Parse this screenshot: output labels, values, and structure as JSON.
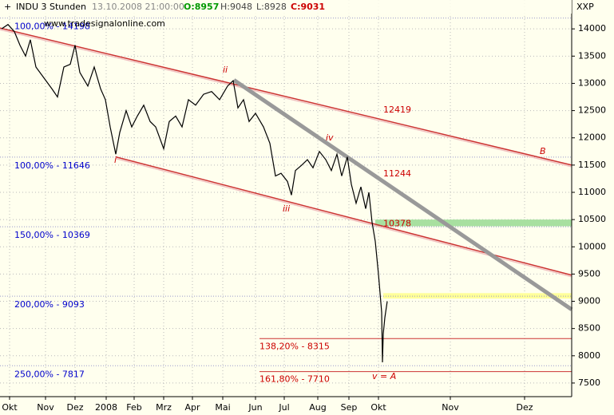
{
  "header": {
    "symbol": "INDU 3 Stunden",
    "datetime": "13.10.2008 21:00:00",
    "open": "O:8957",
    "high": "H:9048",
    "low": "L:8928",
    "close": "C:9031",
    "source": "www.tradesignalonline.com",
    "corner": "XXP"
  },
  "chart_data": {
    "type": "line",
    "color": "#000000",
    "grid": true,
    "xlim": [
      0,
      716
    ],
    "ylim": [
      7250,
      14530
    ],
    "xticks": [
      {
        "value": 12,
        "label": "Okt"
      },
      {
        "value": 57,
        "label": "Nov"
      },
      {
        "value": 94,
        "label": "Dez"
      },
      {
        "value": 133,
        "label": "2008"
      },
      {
        "value": 168,
        "label": "Feb"
      },
      {
        "value": 205,
        "label": "Mrz"
      },
      {
        "value": 241,
        "label": "Apr"
      },
      {
        "value": 279,
        "label": "Mai"
      },
      {
        "value": 320,
        "label": "Jun"
      },
      {
        "value": 356,
        "label": "Jul"
      },
      {
        "value": 398,
        "label": "Aug"
      },
      {
        "value": 437,
        "label": "Sep"
      },
      {
        "value": 474,
        "label": "Okt"
      },
      {
        "value": 564,
        "label": "Nov"
      },
      {
        "value": 657,
        "label": "Dez"
      }
    ],
    "yticks": [
      7500,
      8000,
      8500,
      9000,
      9500,
      10000,
      10500,
      11000,
      11500,
      12000,
      12500,
      13000,
      13500,
      14000
    ],
    "x": [
      2,
      10,
      18,
      25,
      32,
      38,
      45,
      55,
      65,
      72,
      80,
      88,
      94,
      100,
      110,
      118,
      126,
      132,
      138,
      145,
      150,
      158,
      165,
      172,
      180,
      188,
      195,
      205,
      212,
      220,
      228,
      236,
      245,
      255,
      265,
      275,
      285,
      292,
      298,
      305,
      312,
      320,
      330,
      338,
      345,
      352,
      360,
      365,
      370,
      378,
      385,
      392,
      400,
      408,
      415,
      422,
      428,
      435,
      440,
      446,
      452,
      458,
      462,
      466,
      470,
      474,
      478,
      479,
      480,
      482,
      485
    ],
    "values": [
      14000,
      14080,
      13950,
      13700,
      13500,
      13800,
      13300,
      13100,
      12900,
      12750,
      13300,
      13350,
      13700,
      13200,
      12950,
      13300,
      12900,
      12700,
      12200,
      11700,
      12100,
      12500,
      12200,
      12400,
      12600,
      12300,
      12200,
      11800,
      12300,
      12400,
      12200,
      12700,
      12600,
      12800,
      12850,
      12700,
      12950,
      13050,
      12550,
      12700,
      12300,
      12450,
      12200,
      11900,
      11300,
      11350,
      11200,
      10950,
      11400,
      11500,
      11600,
      11450,
      11750,
      11600,
      11400,
      11700,
      11300,
      11650,
      11150,
      10800,
      11100,
      10700,
      11000,
      10450,
      10100,
      9500,
      8800,
      7880,
      8400,
      8700,
      9000
    ],
    "trendlines": [
      {
        "color": "#cc3333",
        "x": [
          0,
          716
        ],
        "y": [
          14015,
          11500
        ]
      },
      {
        "color": "#cc3333",
        "x": [
          145,
          716
        ],
        "y": [
          11650,
          9480
        ]
      },
      {
        "color": "#999999",
        "x": [
          293,
          716
        ],
        "y": [
          13060,
          8850
        ]
      }
    ],
    "bands": [
      {
        "color": "#a8e0a0",
        "x": [
          470,
          716
        ],
        "low": 10378,
        "high": 10500,
        "label": "10378"
      },
      {
        "color": "#ffff99",
        "x": [
          480,
          716
        ],
        "low": 9050,
        "high": 9150
      }
    ],
    "targets": [
      {
        "value": 8315,
        "label": "138,20% - 8315"
      },
      {
        "value": 7710,
        "label": "161,80% - 7710"
      }
    ],
    "fib_levels": [
      {
        "value": 14198,
        "label": "100,00% - 14198"
      },
      {
        "value": 11646,
        "label": "100,00% - 11646"
      },
      {
        "value": 10369,
        "label": "150,00% - 10369"
      },
      {
        "value": 9093,
        "label": "200,00% - 9093"
      },
      {
        "value": 7817,
        "label": "250,00% - 7817"
      }
    ],
    "price_labels": [
      "12419",
      "11244"
    ],
    "waves": [
      "i",
      "ii",
      "iii",
      "iv",
      "v = A",
      "B"
    ]
  }
}
